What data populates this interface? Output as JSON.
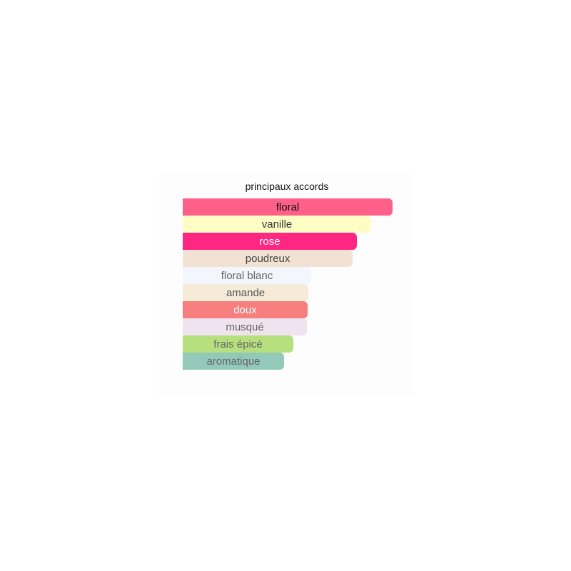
{
  "chart_data": {
    "type": "bar",
    "orientation": "horizontal",
    "title": "principaux accords",
    "categories": [
      "floral",
      "vanille",
      "rose",
      "poudreux",
      "floral blanc",
      "amande",
      "doux",
      "musqué",
      "frais épicé",
      "aromatique"
    ],
    "values": [
      100,
      89.8,
      83.0,
      81.0,
      61.2,
      59.9,
      59.5,
      59.2,
      52.7,
      48.3
    ],
    "value_unit": "percent of strongest accord",
    "colors": [
      "#fe6089",
      "#fffdc6",
      "#ff2781",
      "#f1e2d4",
      "#f3f6fd",
      "#f5ebd8",
      "#f67e7e",
      "#efe3ef",
      "#b6df7d",
      "#92c9b9"
    ],
    "text_colors": [
      "#111111",
      "#333333",
      "#ffffff",
      "#444444",
      "#666666",
      "#555555",
      "#ffffff",
      "#666666",
      "#666666",
      "#666666"
    ],
    "grid": false,
    "axes_visible": false
  }
}
